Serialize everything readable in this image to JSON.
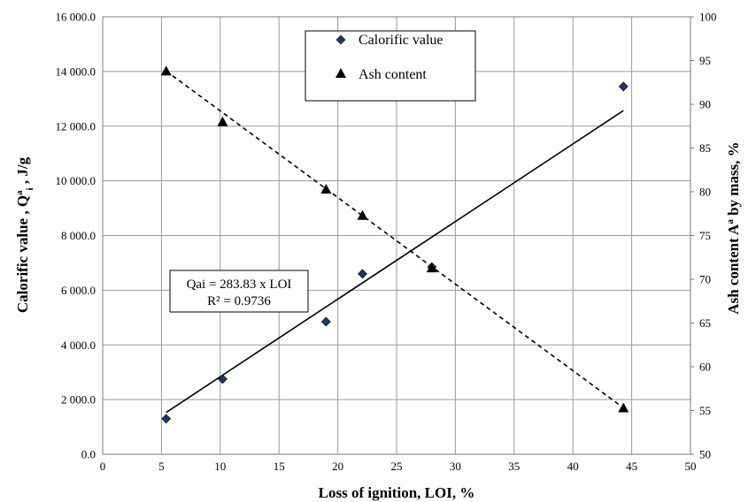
{
  "chart_data": {
    "type": "scatter",
    "xlabel": "Loss of ignition,  LOI, %",
    "ylabel_left_main": "Calorific value , Q",
    "ylabel_left_sup": "a",
    "ylabel_left_sub": "i",
    "ylabel_left_unit": " , J/g",
    "ylabel_right_main": "Ash content A",
    "ylabel_right_sup": "a",
    "ylabel_right_rest": "  by mass, %",
    "xlim": [
      0,
      50
    ],
    "ylim_left": [
      0,
      16000
    ],
    "ylim_right": [
      50,
      100
    ],
    "x_ticks": [
      "0",
      "5",
      "10",
      "15",
      "20",
      "25",
      "30",
      "35",
      "40",
      "45",
      "50"
    ],
    "y_left_ticks": [
      "0.0",
      "2 000.0",
      "4 000.0",
      "6 000.0",
      "8 000.0",
      "10 000.0",
      "12 000.0",
      "14 000.0",
      "16 000.0"
    ],
    "y_right_ticks": [
      "50",
      "55",
      "60",
      "65",
      "70",
      "75",
      "80",
      "85",
      "90",
      "95",
      "100"
    ],
    "grid": true,
    "legend_position": "top-center",
    "series": [
      {
        "name": "Calorific value",
        "axis": "left",
        "marker": "diamond",
        "color": "#1f3864",
        "x": [
          5.4,
          10.2,
          19.0,
          22.1,
          28.0,
          44.3
        ],
        "y": [
          1300,
          2750,
          4850,
          6600,
          6850,
          13450
        ]
      },
      {
        "name": "Ash content",
        "axis": "right",
        "marker": "triangle",
        "color": "#000000",
        "x": [
          5.4,
          10.2,
          19.0,
          22.1,
          28.0,
          44.3
        ],
        "y": [
          93.8,
          88.0,
          80.3,
          77.3,
          71.3,
          55.3
        ]
      }
    ],
    "fit_lines": [
      {
        "series": "Calorific value",
        "style": "solid",
        "x": [
          5.4,
          44.3
        ],
        "y": [
          1530,
          12570
        ]
      },
      {
        "series": "Ash content",
        "style": "dashed",
        "x": [
          5.4,
          44.3
        ],
        "y": [
          93.8,
          55.3
        ]
      }
    ],
    "annotation": {
      "line1": "Qai = 283.83 x LOI",
      "line2": "R² = 0.9736"
    }
  }
}
